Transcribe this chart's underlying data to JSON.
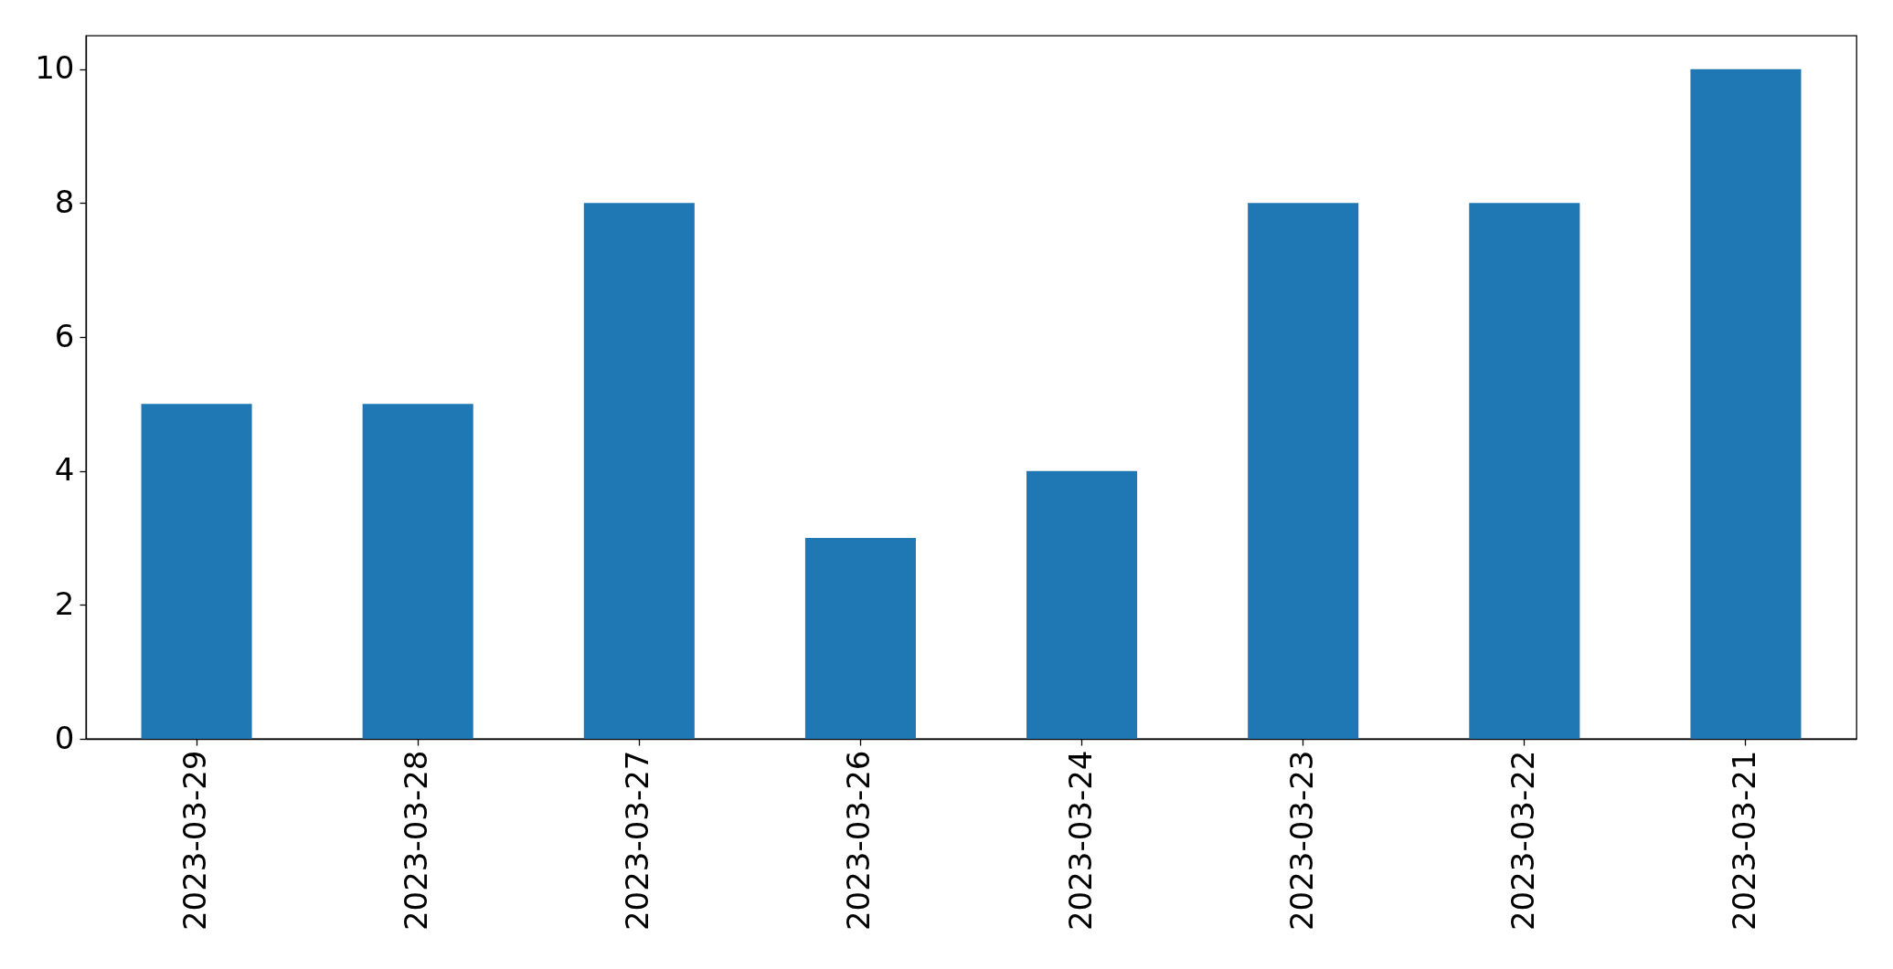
{
  "chart_data": {
    "type": "bar",
    "categories": [
      "2023-03-29",
      "2023-03-28",
      "2023-03-27",
      "2023-03-26",
      "2023-03-24",
      "2023-03-23",
      "2023-03-22",
      "2023-03-21"
    ],
    "values": [
      5,
      5,
      8,
      3,
      4,
      8,
      8,
      10
    ],
    "color": "#1f77b4",
    "ylim": [
      0,
      10.5
    ],
    "yticks": [
      0,
      2,
      4,
      6,
      8,
      10
    ]
  }
}
